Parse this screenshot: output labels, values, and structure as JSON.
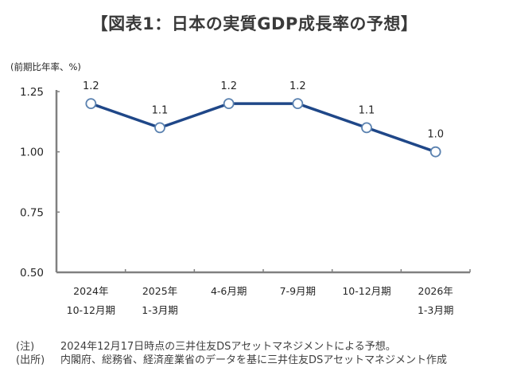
{
  "chart_data": {
    "type": "line",
    "title": "【図表1：日本の実質GDP成長率の予想】",
    "ylabel": "(前期比年率、%)",
    "xlabel": "",
    "ylim": [
      0.5,
      1.25
    ],
    "yticks": [
      0.5,
      0.75,
      1.0,
      1.25
    ],
    "ytick_labels": [
      "0.50",
      "0.75",
      "1.00",
      "1.25"
    ],
    "categories": [
      [
        "2024年",
        "10-12月期"
      ],
      [
        "2025年",
        "1-3月期"
      ],
      [
        "4-6月期"
      ],
      [
        "7-9月期"
      ],
      [
        "10-12月期"
      ],
      [
        "2026年",
        "1-3月期"
      ]
    ],
    "series": [
      {
        "name": "実質GDP成長率",
        "values": [
          1.2,
          1.1,
          1.2,
          1.2,
          1.1,
          1.0
        ],
        "data_labels": [
          "1.2",
          "1.1",
          "1.2",
          "1.2",
          "1.1",
          "1.0"
        ],
        "line_color": "#1f4788",
        "marker_edge_color": "#5b82b0",
        "marker_face_color": "#ffffff"
      }
    ],
    "grid": false,
    "legend": "none",
    "axis_color": "#808080"
  },
  "notes": [
    {
      "label": "(注)",
      "text": "2024年12月17日時点の三井住友DSアセットマネジメントによる予想。"
    },
    {
      "label": "(出所)",
      "text": "内閣府、総務省、経済産業省のデータを基に三井住友DSアセットマネジメント作成"
    }
  ]
}
